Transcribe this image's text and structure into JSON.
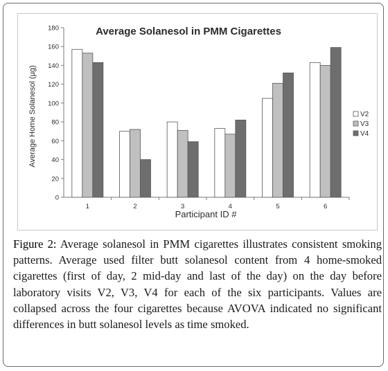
{
  "chart_data": {
    "type": "bar",
    "title": "Average Solanesol in PMM Cigarettes",
    "xlabel": "Participant ID #",
    "ylabel": "Average Home Solanesol (µg)",
    "categories": [
      "1",
      "2",
      "3",
      "4",
      "5",
      "6"
    ],
    "ylim": [
      0,
      180
    ],
    "yticks": [
      0,
      20,
      40,
      60,
      80,
      100,
      120,
      140,
      160,
      180
    ],
    "grid": false,
    "legend_position": "right",
    "series": [
      {
        "name": "V2",
        "color": "#ffffff",
        "values": [
          157,
          70,
          80,
          73,
          105,
          143
        ]
      },
      {
        "name": "V3",
        "color": "#c0c0c0",
        "values": [
          153,
          72,
          71,
          67,
          121,
          140
        ]
      },
      {
        "name": "V4",
        "color": "#6e6e6e",
        "values": [
          143,
          40,
          59,
          82,
          132,
          159
        ]
      }
    ]
  },
  "caption": {
    "label": "Figure 2:",
    "text": " Average solanesol in PMM cigarettes illustrates consistent smoking patterns. Average used filter butt solanesol content from 4 home-smoked cigarettes (first of day, 2 mid-day and last of the day) on the day before laboratory visits V2, V3, V4 for each of the six participants. Values are collapsed across the four cigarettes because AVOVA indicated no significant differences in butt solanesol levels as time smoked."
  }
}
